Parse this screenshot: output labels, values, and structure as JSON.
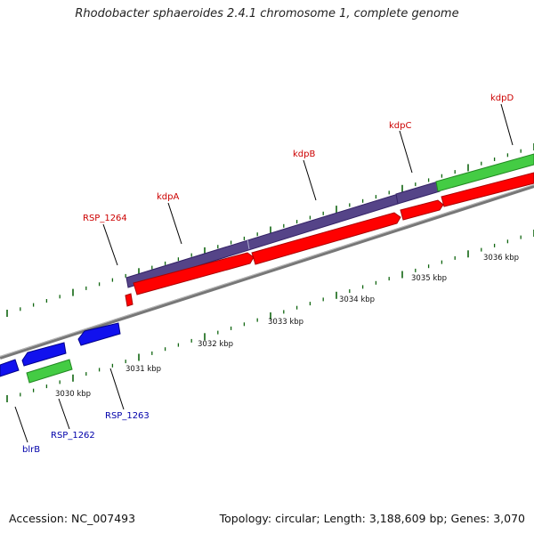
{
  "header": {
    "title": "Rhodobacter sphaeroides 2.4.1 chromosome 1, complete genome"
  },
  "footer": {
    "accession": "Accession: NC_007493",
    "summary": "Topology: circular; Length: 3,188,609 bp; Genes: 3,070"
  },
  "ruler_labels": [
    "3030 kbp",
    "3031 kbp",
    "3032 kbp",
    "3033 kbp",
    "3034 kbp",
    "3035 kbp",
    "3036 kbp"
  ],
  "genes_top": [
    {
      "label": "RSP_1264"
    },
    {
      "label": "kdpA"
    },
    {
      "label": "kdpB"
    },
    {
      "label": "kdpC"
    },
    {
      "label": "kdpD"
    }
  ],
  "genes_bottom": [
    {
      "label": "RSP_1263"
    },
    {
      "label": "RSP_1262"
    },
    {
      "label": "blrB"
    }
  ],
  "colors": {
    "cds_red": "#ff0000",
    "gene_purple": "#554488",
    "gene_green": "#44cc44",
    "gene_blue": "#1111ee",
    "backbone_gray": "#888888",
    "tick_green": "#116611",
    "label_red": "#cc0000",
    "label_blue": "#0000aa"
  }
}
